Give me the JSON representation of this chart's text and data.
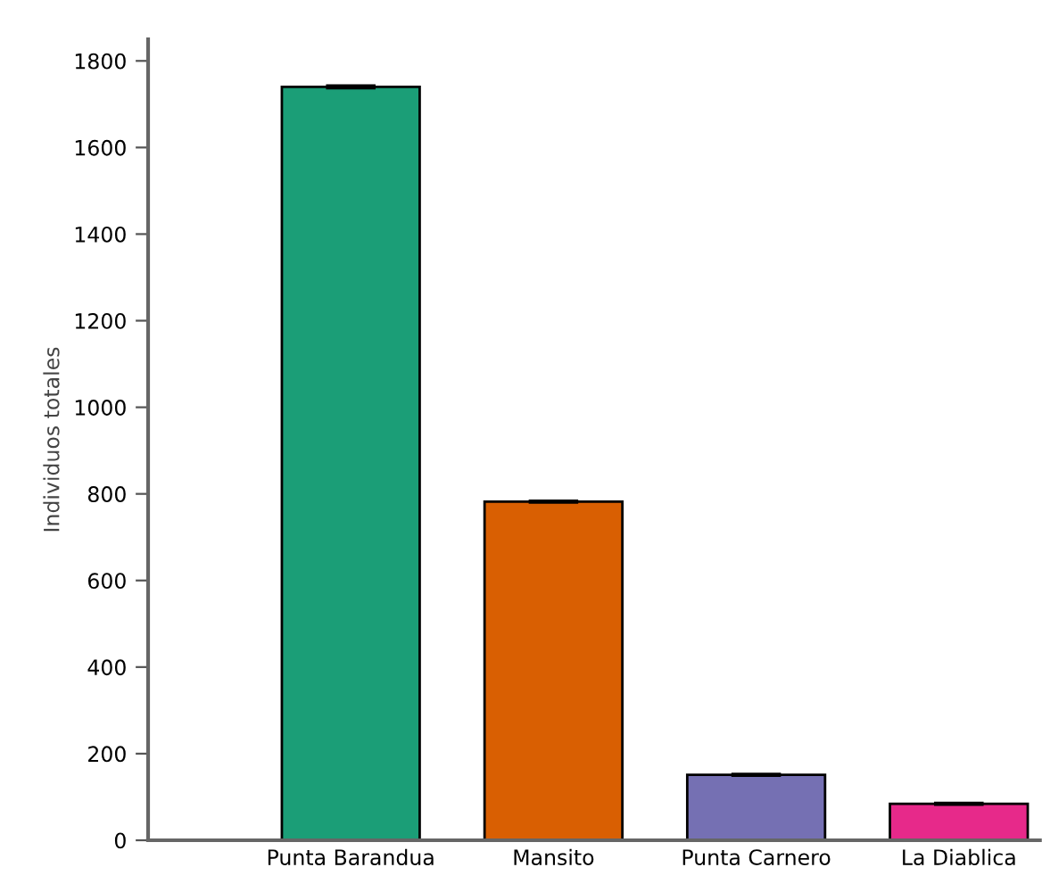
{
  "chart_data": {
    "type": "bar",
    "ylabel": "Individuos totales",
    "categories": [
      "Punta Barandua",
      "Mansito",
      "Punta Carnero",
      "La Diablica"
    ],
    "values": [
      1740,
      782,
      151,
      84
    ],
    "errors": [
      3,
      2,
      2,
      2
    ],
    "colors": [
      "#1b9e77",
      "#d95f02",
      "#7570b3",
      "#e7298a"
    ],
    "ylim": [
      0,
      1850
    ],
    "yticks": [
      0,
      200,
      400,
      600,
      800,
      1000,
      1200,
      1400,
      1600,
      1800
    ],
    "grid": false
  }
}
